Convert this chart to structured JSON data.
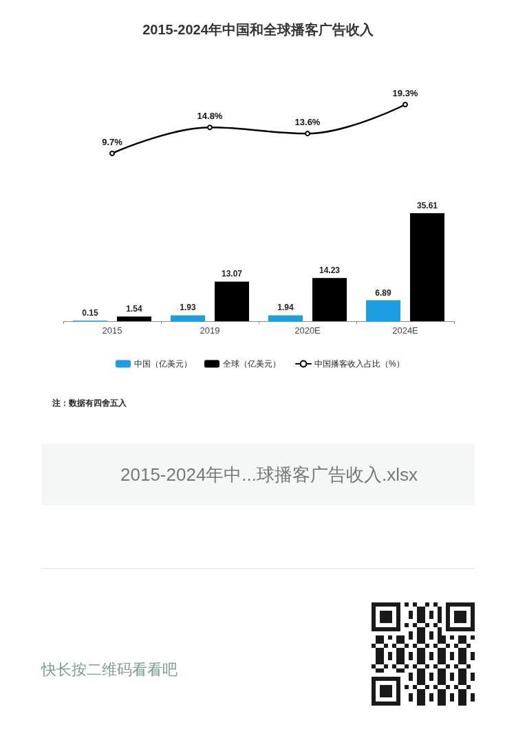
{
  "chart_data": [
    {
      "type": "line",
      "title": "2015-2024年中国和全球播客广告收入",
      "categories": [
        null,
        null,
        null,
        null
      ],
      "tick_labels": "x",
      "series": [
        {
          "name": "中国播客收入占比（%）",
          "color": "#000000",
          "values": [
            9.7,
            14.8,
            13.6,
            19.3
          ],
          "value_labels": [
            "9.7%",
            "14.8%",
            "13.6%",
            "19.3%"
          ]
        }
      ],
      "marker": "circle",
      "line_style": "solid",
      "legend": "bottom"
    },
    {
      "type": "bar",
      "categories": [
        "2015",
        "2019",
        "2020E",
        "2024E"
      ],
      "series": [
        {
          "name": "中国（亿美元）",
          "color": "#1b9fe0",
          "values": [
            0.15,
            1.93,
            1.94,
            6.89
          ]
        },
        {
          "name": "全球（亿美元）",
          "color": "#000000",
          "values": [
            1.54,
            13.07,
            14.23,
            35.61
          ]
        }
      ],
      "data_labels": true,
      "tick_labels": "x",
      "legend": "bottom",
      "annotations": [
        "注：数据有四舍五入",
        "2015-2024年中...球播客广告收入.xlsx",
        "快长按二维码看看吧"
      ]
    }
  ]
}
